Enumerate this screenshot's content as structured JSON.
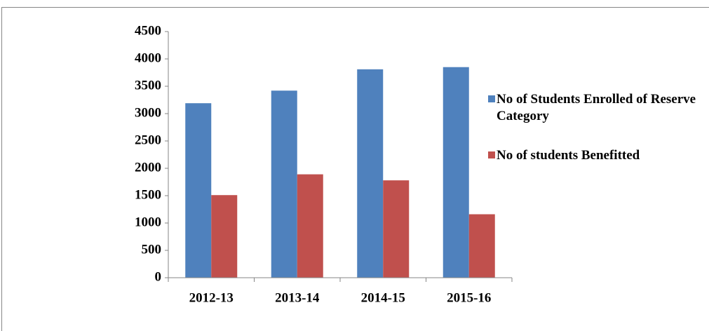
{
  "chart_data": {
    "type": "bar",
    "categories": [
      "2012-13",
      "2013-14",
      "2014-15",
      "2015-16"
    ],
    "series": [
      {
        "name": "No of Students Enrolled of Reserve Category",
        "color": "#4f81bd",
        "values": [
          3190,
          3420,
          3810,
          3850
        ]
      },
      {
        "name": "No of students Benefitted",
        "color": "#c0504d",
        "values": [
          1510,
          1890,
          1780,
          1160
        ]
      }
    ],
    "ylim": [
      0,
      4500
    ],
    "yticks": [
      0,
      500,
      1000,
      1500,
      2000,
      2500,
      3000,
      3500,
      4000,
      4500
    ],
    "legend": "right"
  }
}
